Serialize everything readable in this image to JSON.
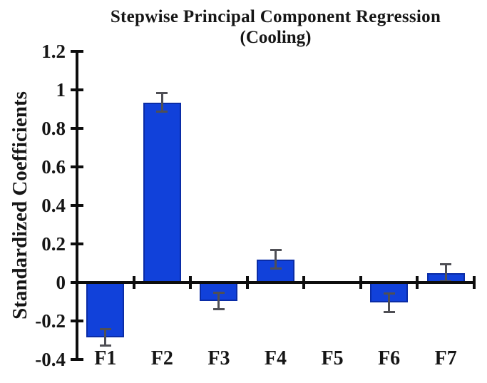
{
  "chart_data": {
    "type": "bar",
    "title": "Stepwise Principal Component Regression",
    "subtitle": "(Cooling)",
    "ylabel": "Standardized Coefficients",
    "xlabel": "",
    "categories": [
      "F1",
      "F2",
      "F3",
      "F4",
      "F5",
      "F6",
      "F7"
    ],
    "values": [
      -0.285,
      0.935,
      -0.095,
      0.12,
      0,
      -0.105,
      0.05
    ],
    "error_bars": [
      0.045,
      0.05,
      0.045,
      0.05,
      0,
      0.05,
      0.045
    ],
    "ylim": [
      -0.4,
      1.2
    ],
    "yticks": [
      -0.4,
      -0.2,
      0,
      0.2,
      0.4,
      0.6,
      0.8,
      1,
      1.2
    ],
    "ytick_labels": [
      "-0.4",
      "-0.2",
      "0",
      "0.2",
      "0.4",
      "0.6",
      "0.8",
      "1",
      "1.2"
    ],
    "grid": false,
    "legend": null,
    "bar_color": "#1141da",
    "bar_border_color": "#0a2ca6",
    "error_color": "#4f4f55",
    "axis_color": "#0d0d0d",
    "text_color": "#161616",
    "background": "#ffffff"
  }
}
